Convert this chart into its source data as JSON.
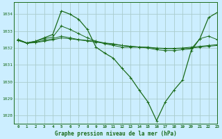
{
  "background_color": "#cceeff",
  "grid_color": "#aacccc",
  "line_color": "#1a6b1a",
  "title": "Graphe pression niveau de la mer (hPa)",
  "xlim": [
    -0.5,
    23
  ],
  "ylim": [
    1027.5,
    1034.7
  ],
  "yticks": [
    1028,
    1029,
    1030,
    1031,
    1032,
    1033,
    1034
  ],
  "xticks": [
    0,
    1,
    2,
    3,
    4,
    5,
    6,
    7,
    8,
    9,
    10,
    11,
    12,
    13,
    14,
    15,
    16,
    17,
    18,
    19,
    20,
    21,
    22,
    23
  ],
  "series": [
    {
      "x": [
        0,
        1,
        2,
        3,
        4,
        5,
        6,
        7,
        8,
        9,
        10,
        11,
        12,
        13,
        14,
        15,
        16,
        17,
        18,
        19,
        20,
        21,
        22,
        23
      ],
      "y": [
        1032.5,
        1032.3,
        1032.4,
        1032.6,
        1032.8,
        1034.2,
        1034.0,
        1033.7,
        1033.1,
        1032.05,
        1031.7,
        1031.4,
        1030.8,
        1030.25,
        1029.5,
        1028.8,
        1027.7,
        1028.8,
        1029.5,
        1030.1,
        1031.85,
        1032.55,
        1033.8,
        1034.1
      ]
    },
    {
      "x": [
        0,
        1,
        2,
        3,
        4,
        5,
        6,
        7,
        8,
        9,
        10,
        11,
        12,
        13,
        14,
        15,
        16,
        17,
        18,
        19,
        20,
        21,
        22,
        23
      ],
      "y": [
        1032.5,
        1032.3,
        1032.4,
        1032.55,
        1032.65,
        1033.3,
        1033.1,
        1032.85,
        1032.6,
        1032.4,
        1032.25,
        1032.15,
        1032.05,
        1032.05,
        1032.05,
        1032.0,
        1031.9,
        1031.85,
        1031.85,
        1031.9,
        1031.95,
        1032.55,
        1032.7,
        1032.5
      ]
    },
    {
      "x": [
        0,
        1,
        2,
        3,
        4,
        5,
        6,
        7,
        8,
        9,
        10,
        11,
        12,
        13,
        14,
        15,
        16,
        17,
        18,
        19,
        20,
        21,
        22,
        23
      ],
      "y": [
        1032.45,
        1032.3,
        1032.35,
        1032.45,
        1032.55,
        1032.7,
        1032.6,
        1032.5,
        1032.45,
        1032.4,
        1032.3,
        1032.25,
        1032.15,
        1032.1,
        1032.05,
        1032.05,
        1032.0,
        1031.98,
        1031.98,
        1032.0,
        1032.05,
        1032.1,
        1032.15,
        1032.2
      ]
    },
    {
      "x": [
        0,
        1,
        2,
        3,
        4,
        5,
        6,
        7,
        8,
        9,
        10,
        11,
        12,
        13,
        14,
        15,
        16,
        17,
        18,
        19,
        20,
        21,
        22,
        23
      ],
      "y": [
        1032.45,
        1032.28,
        1032.32,
        1032.4,
        1032.48,
        1032.6,
        1032.55,
        1032.48,
        1032.42,
        1032.35,
        1032.28,
        1032.22,
        1032.15,
        1032.1,
        1032.06,
        1032.03,
        1031.98,
        1031.96,
        1031.96,
        1031.98,
        1032.0,
        1032.05,
        1032.1,
        1032.15
      ]
    }
  ]
}
